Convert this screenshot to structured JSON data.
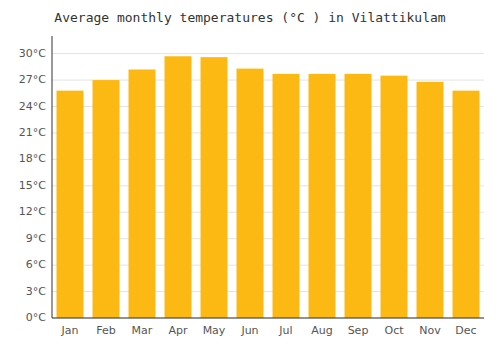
{
  "chart_data": {
    "type": "bar",
    "title": "Average monthly temperatures (°C ) in Vilattikulam",
    "categories": [
      "Jan",
      "Feb",
      "Mar",
      "Apr",
      "May",
      "Jun",
      "Jul",
      "Aug",
      "Sep",
      "Oct",
      "Nov",
      "Dec"
    ],
    "values": [
      25.8,
      27.0,
      28.2,
      29.7,
      29.6,
      28.3,
      27.7,
      27.7,
      27.7,
      27.5,
      26.8,
      25.8
    ],
    "color": "#FDB913",
    "ylim": [
      0,
      32
    ],
    "yticks": [
      {
        "value": 0,
        "label": "0°C"
      },
      {
        "value": 3,
        "label": "3°C"
      },
      {
        "value": 6,
        "label": "6°C"
      },
      {
        "value": 9,
        "label": "9°C"
      },
      {
        "value": 12,
        "label": "12°C"
      },
      {
        "value": 15,
        "label": "15°C"
      },
      {
        "value": 18,
        "label": "18°C"
      },
      {
        "value": 21,
        "label": "21°C"
      },
      {
        "value": 24,
        "label": "24°C"
      },
      {
        "value": 27,
        "label": "27°C"
      },
      {
        "value": 30,
        "label": "30°C"
      }
    ],
    "grid": true
  }
}
